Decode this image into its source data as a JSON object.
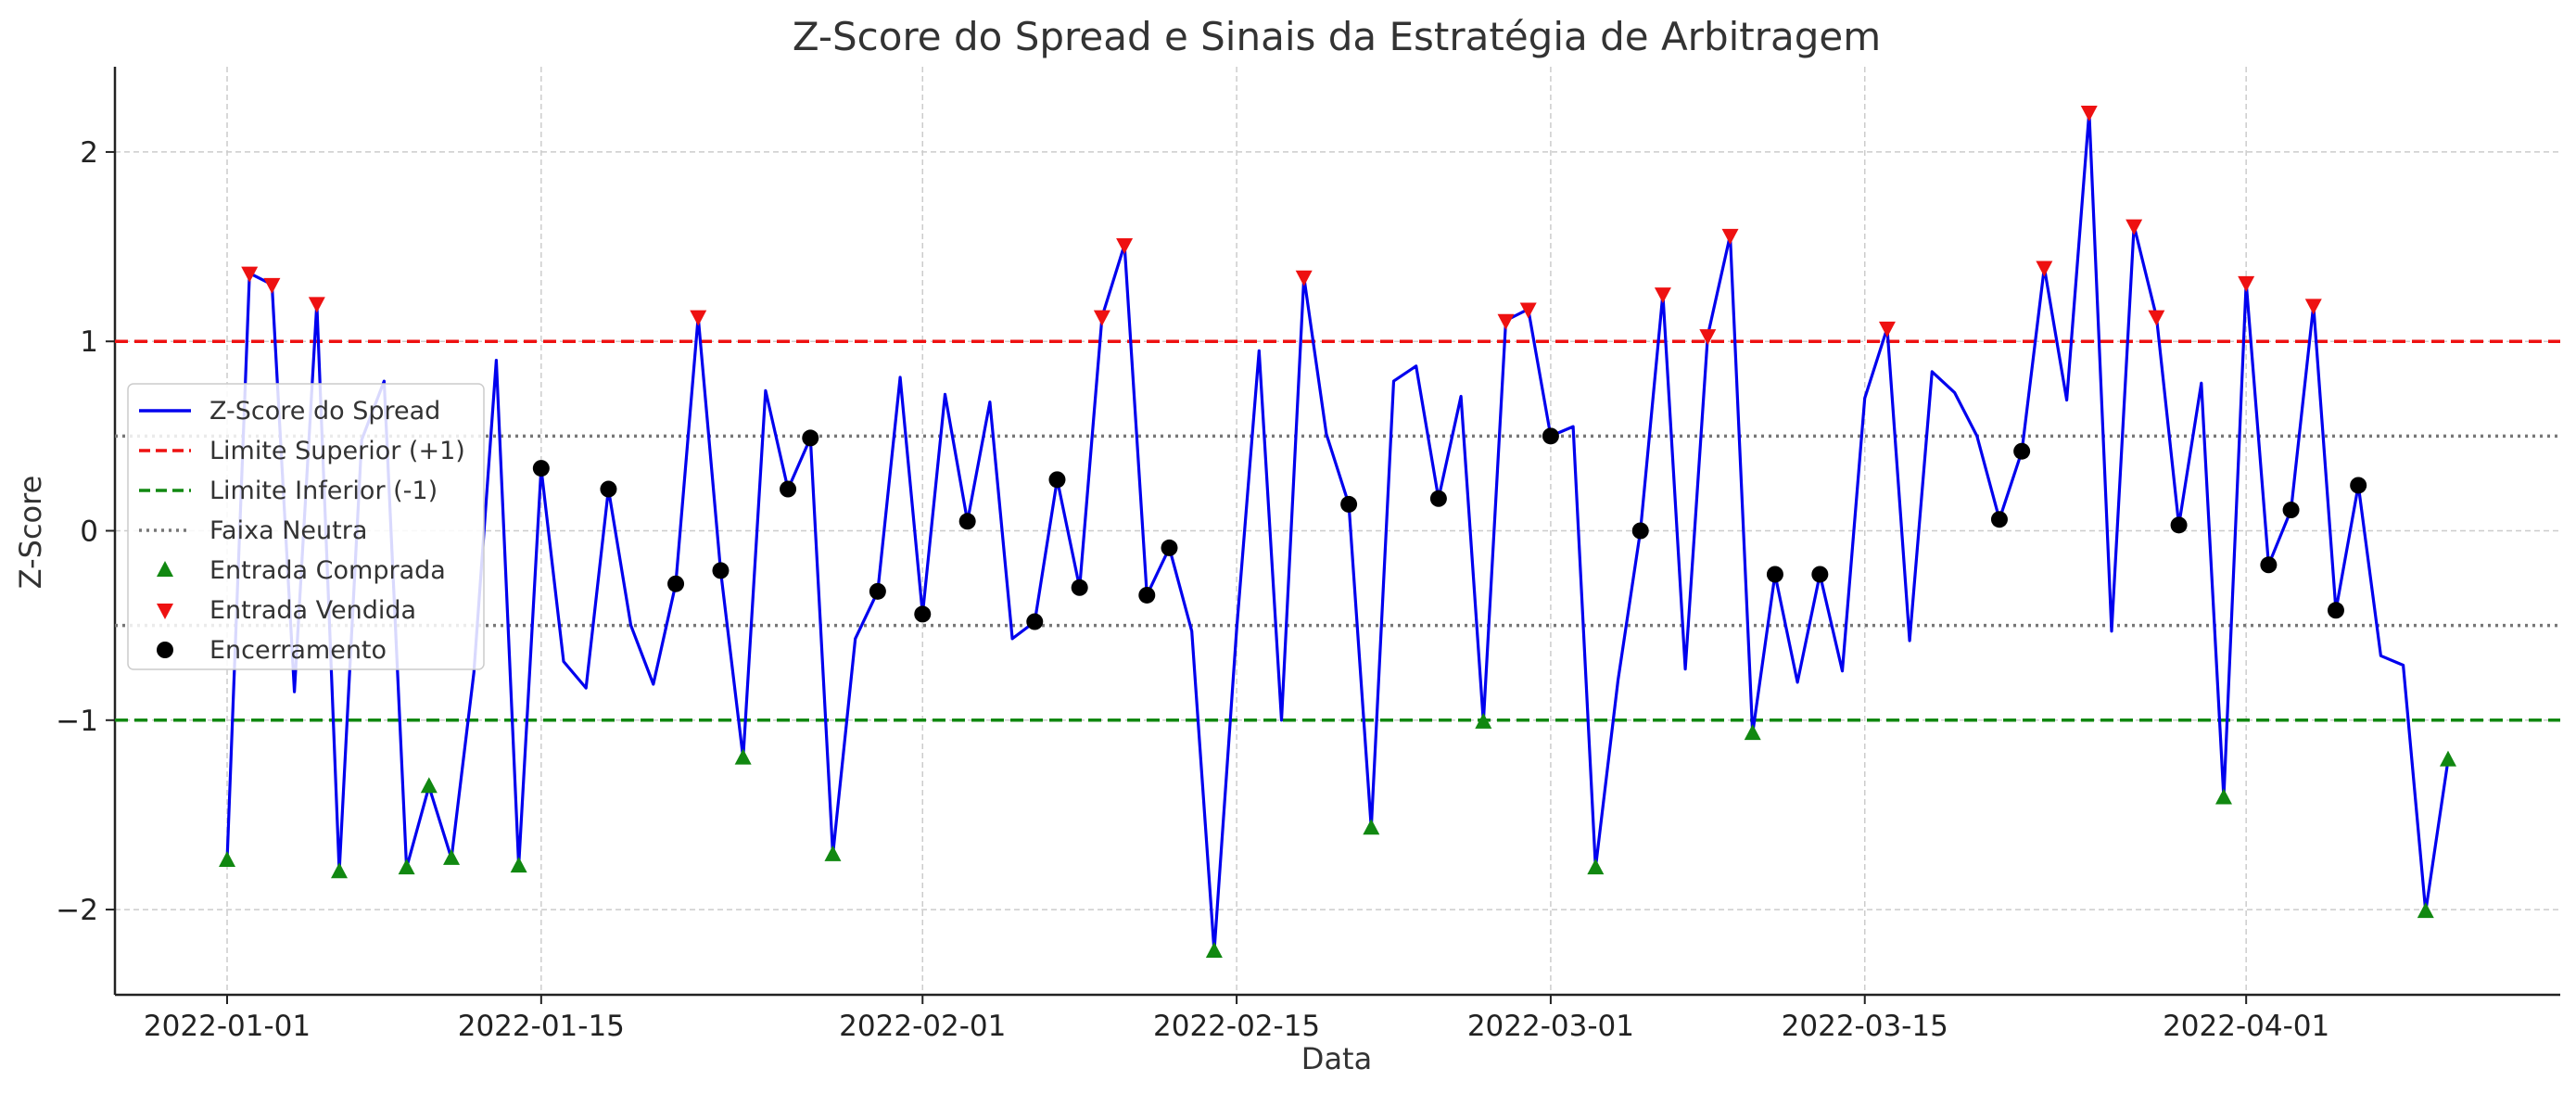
{
  "chart_data": {
    "type": "line",
    "title": "Z-Score do Spread e Sinais da Estratégia de Arbitragem",
    "xlabel": "Data",
    "ylabel": "Z-Score",
    "x_start": "2022-01-01",
    "xlim": [
      "2021-12-27",
      "2022-04-15"
    ],
    "ylim": [
      -2.45,
      2.45
    ],
    "x_ticks": [
      "2022-01-01",
      "2022-01-15",
      "2022-02-01",
      "2022-02-15",
      "2022-03-01",
      "2022-03-15",
      "2022-04-01"
    ],
    "y_ticks": [
      -2,
      -1,
      0,
      1,
      2
    ],
    "y_tick_labels": [
      "−2",
      "−1",
      "0",
      "1",
      "2"
    ],
    "grid": true,
    "legend_position": "center-left",
    "series": [
      {
        "name": "Z-Score do Spread",
        "color": "#0000ee",
        "style": "solid",
        "values": [
          -1.74,
          1.36,
          1.3,
          -0.85,
          1.2,
          -1.8,
          0.48,
          0.79,
          -1.78,
          -1.35,
          -1.73,
          -0.75,
          0.9,
          -1.77,
          0.33,
          -0.69,
          -0.83,
          0.22,
          -0.5,
          -0.81,
          -0.28,
          1.13,
          -0.21,
          -1.2,
          0.74,
          0.22,
          0.49,
          -1.71,
          -0.57,
          -0.32,
          0.81,
          -0.44,
          0.72,
          0.05,
          0.68,
          -0.57,
          -0.48,
          0.27,
          -0.3,
          1.13,
          1.51,
          -0.34,
          -0.09,
          -0.53,
          -2.22,
          -0.52,
          0.95,
          -1.0,
          1.34,
          0.51,
          0.14,
          -1.57,
          0.79,
          0.87,
          0.17,
          0.71,
          -1.01,
          1.11,
          1.17,
          0.5,
          0.55,
          -1.78,
          -0.79,
          0.0,
          1.25,
          -0.73,
          1.03,
          1.56,
          -1.07,
          -0.23,
          -0.8,
          -0.23,
          -0.74,
          0.7,
          1.07,
          -0.58,
          0.84,
          0.73,
          0.5,
          0.06,
          0.42,
          1.39,
          0.69,
          2.21,
          -0.53,
          1.61,
          1.13,
          0.03,
          0.78,
          -1.41,
          1.31,
          -0.18,
          0.11,
          1.19,
          -0.42,
          0.24,
          -0.66,
          -0.71,
          -2.01,
          -1.21
        ]
      },
      {
        "name": "Limite Superior (+1)",
        "color": "#ee1111",
        "style": "dashed",
        "value": 1
      },
      {
        "name": "Limite Inferior (-1)",
        "color": "#118811",
        "style": "dashed",
        "value": -1
      },
      {
        "name": "Faixa Neutra",
        "color": "#777777",
        "style": "dotted",
        "values": [
          0.5,
          -0.5
        ]
      },
      {
        "name": "Entrada Comprada",
        "color": "#118811",
        "marker": "triangle-up",
        "points": [
          [
            0,
            -1.74
          ],
          [
            5,
            -1.8
          ],
          [
            8,
            -1.78
          ],
          [
            9,
            -1.35
          ],
          [
            10,
            -1.73
          ],
          [
            13,
            -1.77
          ],
          [
            23,
            -1.2
          ],
          [
            27,
            -1.71
          ],
          [
            44,
            -2.22
          ],
          [
            51,
            -1.57
          ],
          [
            56,
            -1.01
          ],
          [
            61,
            -1.78
          ],
          [
            68,
            -1.07
          ],
          [
            89,
            -1.41
          ],
          [
            98,
            -2.01
          ],
          [
            99,
            -1.21
          ]
        ]
      },
      {
        "name": "Entrada Vendida",
        "color": "#ee1111",
        "marker": "triangle-down",
        "points": [
          [
            1,
            1.36
          ],
          [
            2,
            1.3
          ],
          [
            4,
            1.2
          ],
          [
            21,
            1.13
          ],
          [
            39,
            1.13
          ],
          [
            40,
            1.51
          ],
          [
            48,
            1.34
          ],
          [
            57,
            1.11
          ],
          [
            58,
            1.17
          ],
          [
            64,
            1.25
          ],
          [
            66,
            1.03
          ],
          [
            67,
            1.56
          ],
          [
            74,
            1.07
          ],
          [
            81,
            1.39
          ],
          [
            83,
            2.21
          ],
          [
            85,
            1.61
          ],
          [
            86,
            1.13
          ],
          [
            90,
            1.31
          ],
          [
            93,
            1.19
          ]
        ]
      },
      {
        "name": "Encerramento",
        "color": "#000000",
        "marker": "circle",
        "points": [
          [
            14,
            0.33
          ],
          [
            17,
            0.22
          ],
          [
            20,
            -0.28
          ],
          [
            22,
            -0.21
          ],
          [
            25,
            0.22
          ],
          [
            26,
            0.49
          ],
          [
            29,
            -0.32
          ],
          [
            31,
            -0.44
          ],
          [
            33,
            0.05
          ],
          [
            36,
            -0.48
          ],
          [
            37,
            0.27
          ],
          [
            38,
            -0.3
          ],
          [
            41,
            -0.34
          ],
          [
            42,
            -0.09
          ],
          [
            50,
            0.14
          ],
          [
            54,
            0.17
          ],
          [
            59,
            0.5
          ],
          [
            63,
            0.0
          ],
          [
            69,
            -0.23
          ],
          [
            71,
            -0.23
          ],
          [
            79,
            0.06
          ],
          [
            80,
            0.42
          ],
          [
            87,
            0.03
          ],
          [
            91,
            -0.18
          ],
          [
            92,
            0.11
          ],
          [
            94,
            -0.42
          ],
          [
            95,
            0.24
          ]
        ]
      }
    ]
  }
}
